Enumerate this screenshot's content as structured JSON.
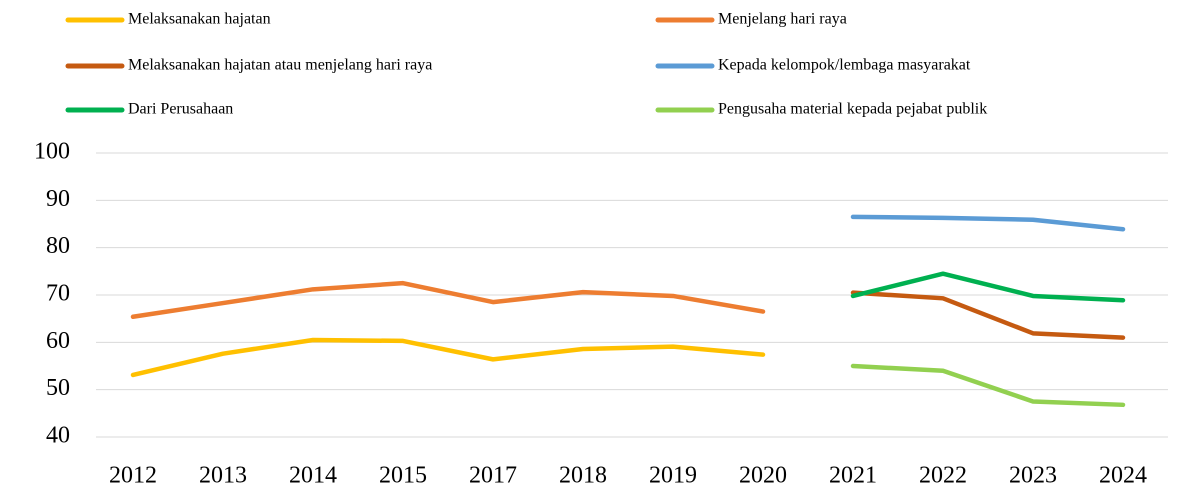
{
  "chart_data": {
    "type": "line",
    "categories": [
      "2012",
      "2013",
      "2014",
      "2015",
      "2017",
      "2018",
      "2019",
      "2020",
      "2021",
      "2022",
      "2023",
      "2024"
    ],
    "series": [
      {
        "name": "Melaksanakan hajatan",
        "color": "#FFC000",
        "values": [
          53.1,
          57.6,
          60.5,
          60.3,
          56.4,
          58.6,
          59.1,
          57.4,
          null,
          null,
          null,
          null
        ]
      },
      {
        "name": "Menjelang hari raya",
        "color": "#ED7D31",
        "values": [
          65.4,
          68.3,
          71.2,
          72.5,
          68.5,
          70.6,
          69.8,
          66.5,
          null,
          null,
          null,
          null
        ]
      },
      {
        "name": "Melaksanakan hajatan atau menjelang hari raya",
        "color": "#C55A11",
        "values": [
          null,
          null,
          null,
          null,
          null,
          null,
          null,
          null,
          70.5,
          69.3,
          61.9,
          61.0
        ]
      },
      {
        "name": "Kepada kelompok/lembaga masyarakat",
        "color": "#5B9BD5",
        "values": [
          null,
          null,
          null,
          null,
          null,
          null,
          null,
          null,
          86.5,
          86.3,
          85.9,
          83.9
        ]
      },
      {
        "name": "Dari Perusahaan",
        "color": "#00B050",
        "values": [
          null,
          null,
          null,
          null,
          null,
          null,
          null,
          null,
          69.8,
          74.5,
          69.8,
          68.9
        ]
      },
      {
        "name": "Pengusaha material kepada pejabat publik",
        "color": "#92D050",
        "values": [
          null,
          null,
          null,
          null,
          null,
          null,
          null,
          null,
          55.0,
          54.0,
          47.5,
          46.8
        ]
      }
    ],
    "ylim": [
      40,
      100
    ],
    "yticks": [
      40,
      50,
      60,
      70,
      80,
      90,
      100
    ],
    "grid": true
  }
}
